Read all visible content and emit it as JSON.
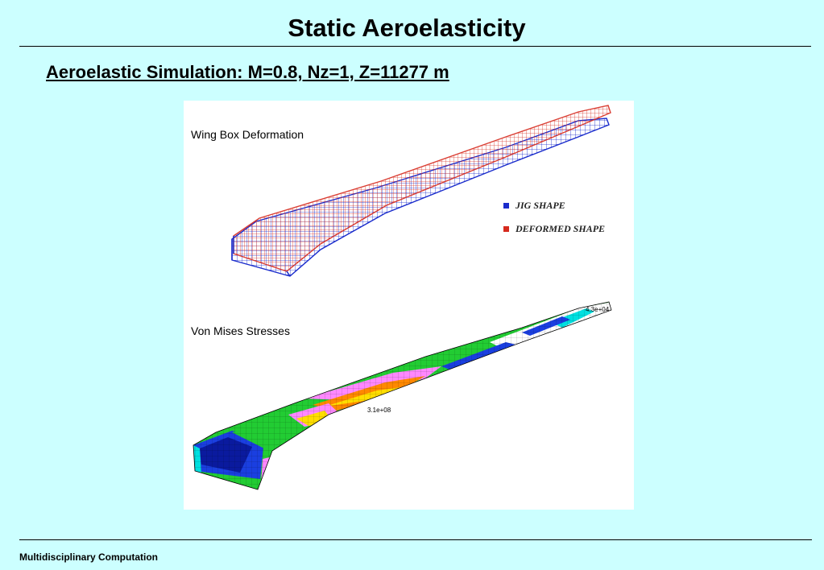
{
  "header": {
    "title": "Static Aeroelasticity",
    "subtitle": "Aeroelastic Simulation: M=0.8, Nz=1, Z=11277 m"
  },
  "figure": {
    "top_panel": {
      "label": "Wing Box Deformation",
      "legend": [
        {
          "label": "JIG SHAPE",
          "color": "#1a2ccc"
        },
        {
          "label": "DEFORMED SHAPE",
          "color": "#d62a1e"
        }
      ]
    },
    "bottom_panel": {
      "label": "Von Mises Stresses",
      "contour_values": [
        "4.3e+04",
        "3.1e+08"
      ],
      "colors": [
        "#0a1a9e",
        "#1a3fe0",
        "#22cc33",
        "#00e0e0",
        "#ff88ff",
        "#e02030",
        "#ff8800",
        "#ffdd00"
      ]
    }
  },
  "footer": {
    "text": "Multidisciplinary Computation"
  }
}
